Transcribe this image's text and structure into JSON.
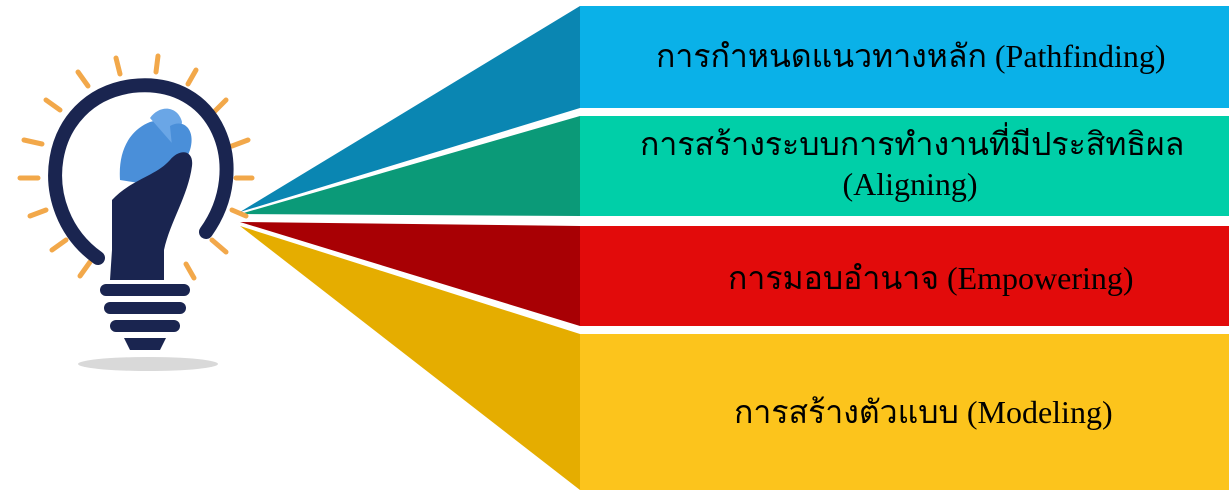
{
  "items": [
    {
      "label": "การกำหนดแนวทางหลัก (Pathfinding)",
      "color": "#0ab1e8",
      "wedge_color": "#0a86b2"
    },
    {
      "label_line1": "การสร้างระบบการทำงานที่มีประสิทธิผล",
      "label_line2": "(Aligning)",
      "color": "#00cfa8",
      "wedge_color": "#0b9a78"
    },
    {
      "label": "การมอบอำนาจ (Empowering)",
      "color": "#e20b0b",
      "wedge_color": "#a80004"
    },
    {
      "label": "การสร้างตัวแบบ (Modeling)",
      "color": "#fcc41c",
      "wedge_color": "#e5ad00"
    }
  ],
  "icon": {
    "name": "lightbulb-hand-icon",
    "bulb_color": "#1a2550",
    "hand_color": "#4a8fd9",
    "ray_color": "#f2a84a"
  }
}
